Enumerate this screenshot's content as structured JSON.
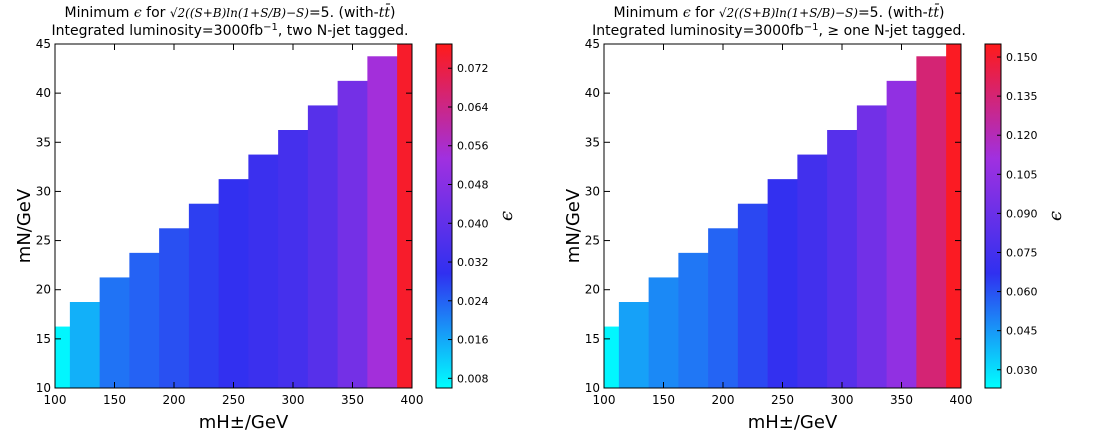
{
  "chart_data": [
    {
      "type": "heatmap",
      "title_lines": [
        [
          "Minimum ",
          "ϵ",
          " for ",
          "√2((S+B)ln(1+S/B)−S)",
          "=5. (with-",
          "tt̄",
          ")"
        ],
        [
          "Integrated luminosity=3000fb",
          "−1",
          ", two N-jet tagged."
        ]
      ],
      "xlabel": "mH±/GeV",
      "ylabel": "mN/GeV",
      "colorbar_label": "ϵ",
      "xlim": [
        100,
        400
      ],
      "ylim": [
        10,
        45
      ],
      "x_ticks": [
        "100",
        "150",
        "200",
        "250",
        "300",
        "350",
        "400"
      ],
      "y_ticks": [
        "10",
        "15",
        "20",
        "25",
        "30",
        "35",
        "40",
        "45"
      ],
      "colorbar_ticks": [
        "0.008",
        "0.016",
        "0.024",
        "0.032",
        "0.040",
        "0.048",
        "0.056",
        "0.064",
        "0.072"
      ],
      "crange": [
        0.006,
        0.077
      ],
      "x_edges": [
        100,
        112.5,
        137.5,
        162.5,
        187.5,
        212.5,
        237.5,
        262.5,
        287.5,
        312.5,
        337.5,
        362.5,
        387.5,
        400
      ],
      "column_tops": [
        16.25,
        18.75,
        21.25,
        23.75,
        26.25,
        28.75,
        31.25,
        33.75,
        36.25,
        38.75,
        41.25,
        43.75,
        45
      ],
      "values": [
        0.007,
        0.015,
        0.022,
        0.024,
        0.026,
        0.028,
        0.03,
        0.032,
        0.034,
        0.038,
        0.044,
        0.054,
        0.075
      ],
      "colormap": [
        "#00ffff",
        "#3030f0",
        "#a030e0",
        "#ff1a1a"
      ]
    },
    {
      "type": "heatmap",
      "title_lines": [
        [
          "Minimum ",
          "ϵ",
          " for ",
          "√2((S+B)ln(1+S/B)−S)",
          "=5. (with-",
          "tt̄",
          ")"
        ],
        [
          "Integrated luminosity=3000fb",
          "−1",
          ", ≥ one N-jet tagged."
        ]
      ],
      "xlabel": "mH±/GeV",
      "ylabel": "mN/GeV",
      "colorbar_label": "ϵ",
      "xlim": [
        100,
        400
      ],
      "ylim": [
        10,
        45
      ],
      "x_ticks": [
        "100",
        "150",
        "200",
        "250",
        "300",
        "350",
        "400"
      ],
      "y_ticks": [
        "10",
        "15",
        "20",
        "25",
        "30",
        "35",
        "40",
        "45"
      ],
      "colorbar_ticks": [
        "0.030",
        "0.045",
        "0.060",
        "0.075",
        "0.090",
        "0.105",
        "0.120",
        "0.135",
        "0.150"
      ],
      "crange": [
        0.023,
        0.155
      ],
      "x_edges": [
        100,
        112.5,
        137.5,
        162.5,
        187.5,
        212.5,
        237.5,
        262.5,
        287.5,
        312.5,
        337.5,
        362.5,
        387.5,
        400
      ],
      "column_tops": [
        16.25,
        18.75,
        21.25,
        23.75,
        26.25,
        28.75,
        31.25,
        33.75,
        36.25,
        38.75,
        41.25,
        43.75,
        45
      ],
      "values": [
        0.025,
        0.043,
        0.048,
        0.052,
        0.056,
        0.062,
        0.068,
        0.074,
        0.082,
        0.093,
        0.105,
        0.135,
        0.153
      ],
      "colormap": [
        "#00ffff",
        "#3030f0",
        "#a030e0",
        "#ff1a1a"
      ]
    }
  ]
}
